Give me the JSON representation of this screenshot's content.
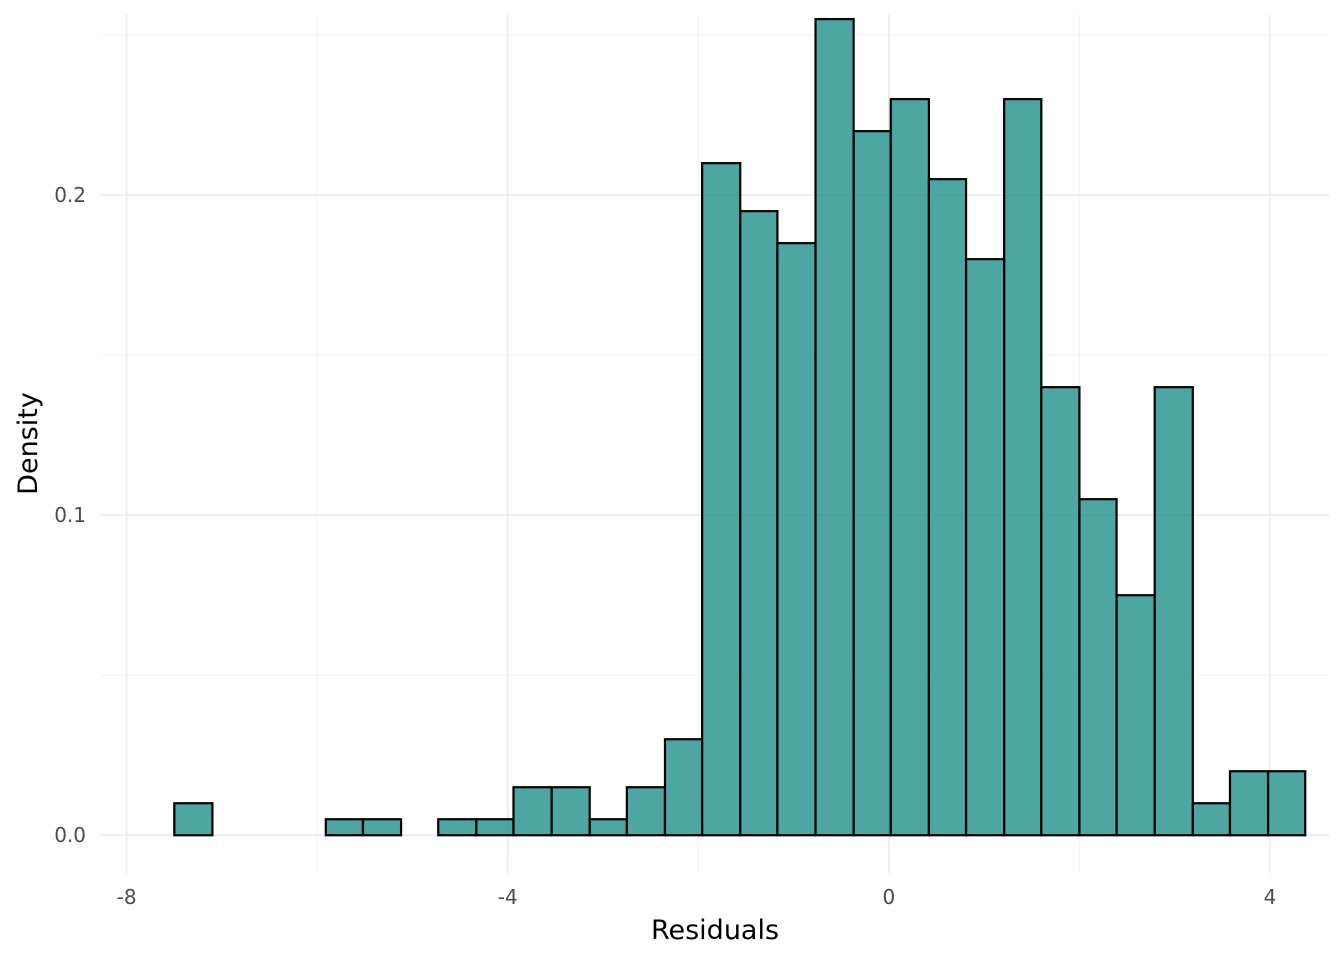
{
  "chart_data": {
    "type": "bar",
    "subtype": "histogram",
    "title": "",
    "xlabel": "Residuals",
    "ylabel": "Density",
    "xlim": [
      -8.28,
      4.63
    ],
    "ylim": [
      -0.0118,
      0.2566
    ],
    "x_ticks": [
      -8,
      -4,
      0,
      4
    ],
    "x_tick_labels": [
      "-8",
      "-4",
      "0",
      "4"
    ],
    "y_ticks": [
      0.0,
      0.1,
      0.2
    ],
    "y_tick_labels": [
      "0.0",
      "0.1",
      "0.2"
    ],
    "grid": true,
    "legend": "none",
    "bar_fill": "#219089",
    "bar_fill_opacity": 0.8,
    "bar_edge": "#000000",
    "bins": [
      {
        "x0": -7.5,
        "x1": -7.1,
        "density": 0.01
      },
      {
        "x0": -7.1,
        "x1": -6.7,
        "density": 0.0
      },
      {
        "x0": -6.7,
        "x1": -6.31,
        "density": 0.0
      },
      {
        "x0": -6.31,
        "x1": -5.91,
        "density": 0.0
      },
      {
        "x0": -5.91,
        "x1": -5.52,
        "density": 0.005
      },
      {
        "x0": -5.52,
        "x1": -5.12,
        "density": 0.005
      },
      {
        "x0": -5.12,
        "x1": -4.73,
        "density": 0.0
      },
      {
        "x0": -4.73,
        "x1": -4.33,
        "density": 0.005
      },
      {
        "x0": -4.33,
        "x1": -3.94,
        "density": 0.005
      },
      {
        "x0": -3.94,
        "x1": -3.54,
        "density": 0.015
      },
      {
        "x0": -3.54,
        "x1": -3.14,
        "density": 0.015
      },
      {
        "x0": -3.14,
        "x1": -2.75,
        "density": 0.005
      },
      {
        "x0": -2.75,
        "x1": -2.35,
        "density": 0.015
      },
      {
        "x0": -2.35,
        "x1": -1.96,
        "density": 0.03
      },
      {
        "x0": -1.96,
        "x1": -1.56,
        "density": 0.21
      },
      {
        "x0": -1.56,
        "x1": -1.17,
        "density": 0.195
      },
      {
        "x0": -1.17,
        "x1": -0.77,
        "density": 0.185
      },
      {
        "x0": -0.77,
        "x1": -0.37,
        "density": 0.255
      },
      {
        "x0": -0.37,
        "x1": 0.02,
        "density": 0.22
      },
      {
        "x0": 0.02,
        "x1": 0.42,
        "density": 0.23
      },
      {
        "x0": 0.42,
        "x1": 0.81,
        "density": 0.205
      },
      {
        "x0": 0.81,
        "x1": 1.21,
        "density": 0.18
      },
      {
        "x0": 1.21,
        "x1": 1.6,
        "density": 0.23
      },
      {
        "x0": 1.6,
        "x1": 2.0,
        "density": 0.14
      },
      {
        "x0": 2.0,
        "x1": 2.39,
        "density": 0.105
      },
      {
        "x0": 2.39,
        "x1": 2.79,
        "density": 0.075
      },
      {
        "x0": 2.79,
        "x1": 3.19,
        "density": 0.14
      },
      {
        "x0": 3.19,
        "x1": 3.58,
        "density": 0.01
      },
      {
        "x0": 3.58,
        "x1": 3.98,
        "density": 0.02
      },
      {
        "x0": 3.98,
        "x1": 4.37,
        "density": 0.02
      }
    ]
  }
}
